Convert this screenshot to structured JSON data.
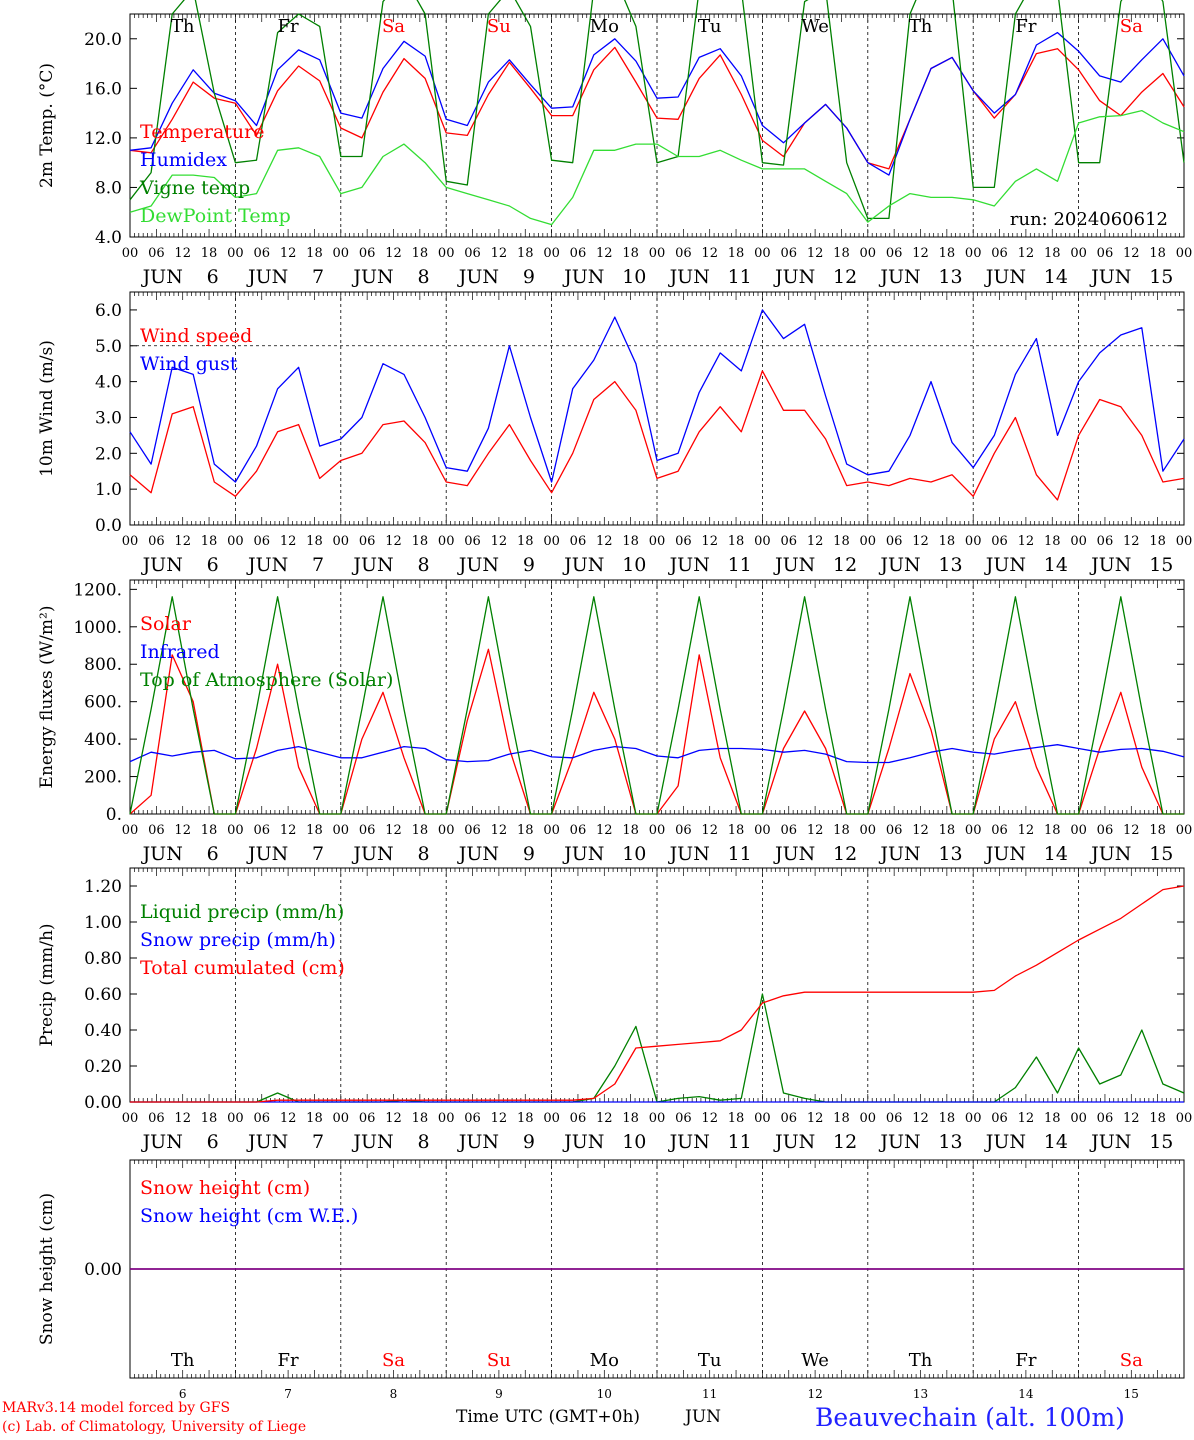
{
  "days": [
    "6",
    "7",
    "8",
    "9",
    "10",
    "11",
    "12",
    "13",
    "14",
    "15"
  ],
  "weekdays": [
    "Th",
    "Fr",
    "Sa",
    "Su",
    "Mo",
    "Tu",
    "We",
    "Th",
    "Fr",
    "Sa"
  ],
  "weekday_colors": [
    "#000000",
    "#000000",
    "#ff0000",
    "#ff0000",
    "#000000",
    "#000000",
    "#000000",
    "#000000",
    "#000000",
    "#ff0000"
  ],
  "hour_labels": [
    "00",
    "06",
    "12",
    "18"
  ],
  "month_label": "JUN",
  "colors": {
    "red": "#ff0000",
    "green": "#008000",
    "blue": "#0000ff",
    "lightgreen": "#33dd33",
    "purple": "#800080"
  },
  "footer": {
    "model": "MARv3.14 model forced by GFS",
    "copyright": "(c) Lab. of Climatology, University of Liege",
    "axis_title": "Time UTC (GMT+0h)",
    "month": "JUN",
    "station": "Beauvechain (alt. 100m)"
  },
  "chart_data": [
    {
      "type": "line",
      "ylabel": "2m Temp. (°C)",
      "ylim": [
        4,
        22
      ],
      "yticks": [
        "4.0",
        "8.0",
        "12.0",
        "16.0",
        "20.0"
      ],
      "annotation": "run: 2024060612",
      "legend": [
        "Temperature",
        "Vigne temp",
        "Humidex",
        "DewPoint Temp"
      ],
      "x_start": "2024-06-06 00:00 UTC",
      "x_step_hours": 6,
      "series": [
        {
          "name": "Temperature",
          "color": "red",
          "values": [
            11,
            10.8,
            13.5,
            16.5,
            15.2,
            14.8,
            12.2,
            15.8,
            17.8,
            16.6,
            12.8,
            12,
            15.7,
            18.4,
            16.8,
            12.4,
            12.2,
            15.5,
            18.1,
            16,
            13.8,
            13.8,
            17.5,
            19.3,
            16.5,
            13.6,
            13.5,
            16.8,
            18.7,
            15.5,
            11.8,
            10.5,
            13.2,
            14.7,
            12.8,
            10,
            9.5,
            13.5,
            17.6,
            18.5,
            15.8,
            13.6,
            15.5,
            18.8,
            19.2,
            17.5,
            15,
            13.8,
            15.7,
            17.2,
            14.5
          ]
        },
        {
          "name": "Humidex",
          "color": "blue",
          "values": [
            11,
            11.2,
            14.8,
            17.5,
            15.6,
            15,
            13,
            17.5,
            19.1,
            18.3,
            14,
            13.6,
            17.6,
            19.8,
            18.6,
            13.5,
            13,
            16.5,
            18.3,
            16.3,
            14.4,
            14.5,
            18.7,
            20,
            18.2,
            15.2,
            15.3,
            18.5,
            19.2,
            17,
            13,
            11.6,
            13.2,
            14.7,
            12.8,
            10,
            9,
            13.5,
            17.6,
            18.5,
            15.8,
            14,
            15.5,
            19.5,
            20.5,
            19,
            17,
            16.5,
            18.3,
            20,
            17
          ]
        },
        {
          "name": "Vigne temp",
          "color": "green",
          "values": [
            7,
            9.2,
            22,
            24,
            15.6,
            10,
            10.2,
            20.5,
            22,
            21,
            10.5,
            10.5,
            23,
            25,
            22,
            8.5,
            8.2,
            22,
            24,
            21,
            10.2,
            10,
            24,
            25,
            21,
            10,
            10.5,
            24,
            26,
            24,
            10,
            9.8,
            23,
            24,
            10,
            5.5,
            5.5,
            22,
            26,
            24,
            8,
            8,
            22,
            25,
            24,
            10,
            10,
            23,
            26,
            23,
            10
          ]
        },
        {
          "name": "DewPoint Temp",
          "color": "lightgreen",
          "values": [
            6,
            6.5,
            9,
            9,
            8.8,
            7.2,
            7.5,
            11,
            11.2,
            10.5,
            7.5,
            8,
            10.5,
            11.5,
            10,
            8,
            7.5,
            7,
            6.5,
            5.5,
            5,
            7.2,
            11,
            11,
            11.5,
            11.5,
            10.5,
            10.5,
            11,
            10.2,
            9.5,
            9.5,
            9.5,
            8.5,
            7.5,
            5.2,
            6.5,
            7.5,
            7.2,
            7.2,
            7,
            6.5,
            8.5,
            9.5,
            8.5,
            13.2,
            13.7,
            13.8,
            14.2,
            13.2,
            12.5
          ]
        }
      ]
    },
    {
      "type": "line",
      "ylabel": "10m Wind (m/s)",
      "ylim": [
        0,
        6.5
      ],
      "yticks": [
        "0.0",
        "1.0",
        "2.0",
        "3.0",
        "4.0",
        "5.0",
        "6.0"
      ],
      "reference_line": 5.0,
      "legend": [
        "Wind speed",
        "Wind gust"
      ],
      "x_start": "2024-06-06 00:00 UTC",
      "x_step_hours": 6,
      "series": [
        {
          "name": "Wind speed",
          "color": "red",
          "values": [
            1.4,
            0.9,
            3.1,
            3.3,
            1.2,
            0.8,
            1.5,
            2.6,
            2.8,
            1.3,
            1.8,
            2,
            2.8,
            2.9,
            2.3,
            1.2,
            1.1,
            2,
            2.8,
            1.8,
            0.9,
            2,
            3.5,
            4,
            3.2,
            1.3,
            1.5,
            2.6,
            3.3,
            2.6,
            4.3,
            3.2,
            3.2,
            2.4,
            1.1,
            1.2,
            1.1,
            1.3,
            1.2,
            1.4,
            0.8,
            2,
            3,
            1.4,
            0.7,
            2.5,
            3.5,
            3.3,
            2.5,
            1.2,
            1.3
          ]
        },
        {
          "name": "Wind gust",
          "color": "blue",
          "values": [
            2.6,
            1.7,
            4.4,
            4.2,
            1.7,
            1.2,
            2.2,
            3.8,
            4.4,
            2.2,
            2.4,
            3,
            4.5,
            4.2,
            3,
            1.6,
            1.5,
            2.7,
            5,
            3,
            1.2,
            3.8,
            4.6,
            5.8,
            4.5,
            1.8,
            2,
            3.7,
            4.8,
            4.3,
            6,
            5.2,
            5.6,
            3.6,
            1.7,
            1.4,
            1.5,
            2.5,
            4,
            2.3,
            1.6,
            2.5,
            4.2,
            5.2,
            2.5,
            4,
            4.8,
            5.3,
            5.5,
            1.5,
            2.4
          ]
        }
      ]
    },
    {
      "type": "line",
      "ylabel": "Energy fluxes (W/m²)",
      "ylim": [
        0,
        1250
      ],
      "yticks": [
        "0.",
        "200.",
        "400.",
        "600.",
        "800.",
        "1000.",
        "1200."
      ],
      "legend": [
        "Solar",
        "Infrared",
        "Top of Atmosphere (Solar)"
      ],
      "x_start": "2024-06-06 00:00 UTC",
      "x_step_hours": 6,
      "series": [
        {
          "name": "Solar",
          "color": "red",
          "values": [
            0,
            100,
            850,
            600,
            0,
            0,
            350,
            800,
            250,
            0,
            0,
            400,
            650,
            300,
            0,
            0,
            500,
            880,
            350,
            0,
            0,
            300,
            650,
            400,
            0,
            0,
            150,
            850,
            300,
            0,
            0,
            350,
            550,
            350,
            0,
            0,
            350,
            750,
            450,
            0,
            0,
            400,
            600,
            250,
            0,
            0,
            350,
            650,
            250,
            0,
            0
          ]
        },
        {
          "name": "Infrared",
          "color": "blue",
          "values": [
            280,
            330,
            310,
            330,
            340,
            295,
            300,
            340,
            360,
            330,
            300,
            300,
            330,
            360,
            350,
            290,
            280,
            285,
            320,
            340,
            305,
            300,
            340,
            360,
            350,
            310,
            300,
            340,
            350,
            350,
            345,
            330,
            340,
            320,
            280,
            275,
            275,
            300,
            330,
            350,
            330,
            320,
            340,
            355,
            370,
            350,
            330,
            345,
            350,
            335,
            305
          ]
        },
        {
          "name": "Top of Atmosphere (Solar)",
          "color": "green",
          "values": [
            0,
            560,
            1160,
            560,
            0,
            0,
            560,
            1160,
            560,
            0,
            0,
            560,
            1160,
            560,
            0,
            0,
            560,
            1160,
            560,
            0,
            0,
            560,
            1160,
            560,
            0,
            0,
            560,
            1160,
            560,
            0,
            0,
            560,
            1160,
            560,
            0,
            0,
            560,
            1160,
            560,
            0,
            0,
            560,
            1160,
            560,
            0,
            0,
            560,
            1160,
            560,
            0,
            0
          ]
        }
      ]
    },
    {
      "type": "line",
      "ylabel": "Precip (mm/h)",
      "ylim": [
        0,
        1.3
      ],
      "yticks": [
        "0.00",
        "0.20",
        "0.40",
        "0.60",
        "0.80",
        "1.00",
        "1.20"
      ],
      "legend": [
        "Liquid precip (mm/h)",
        "Snow precip (mm/h)",
        "Total cumulated (cm)"
      ],
      "x_start": "2024-06-06 00:00 UTC",
      "x_step_hours": 6,
      "series": [
        {
          "name": "Liquid precip (mm/h)",
          "color": "green",
          "values": [
            0,
            0,
            0,
            0,
            0,
            0,
            0,
            0.05,
            0,
            0,
            0,
            0,
            0,
            0.01,
            0,
            0,
            0,
            0,
            0,
            0,
            0,
            0,
            0.02,
            0.2,
            0.42,
            0,
            0.02,
            0.03,
            0.01,
            0.02,
            0.6,
            0.05,
            0.02,
            0,
            0,
            0,
            0,
            0,
            0,
            0,
            0,
            0,
            0.08,
            0.25,
            0.05,
            0.3,
            0.1,
            0.15,
            0.4,
            0.1,
            0.05
          ]
        },
        {
          "name": "Snow precip (mm/h)",
          "color": "blue",
          "values": [
            0,
            0,
            0,
            0,
            0,
            0,
            0,
            0,
            0,
            0,
            0,
            0,
            0,
            0,
            0,
            0,
            0,
            0,
            0,
            0,
            0,
            0,
            0,
            0,
            0,
            0,
            0,
            0,
            0,
            0,
            0,
            0,
            0,
            0,
            0,
            0,
            0,
            0,
            0,
            0,
            0,
            0,
            0,
            0,
            0,
            0,
            0,
            0,
            0,
            0,
            0
          ]
        },
        {
          "name": "Total cumulated (cm)",
          "color": "red",
          "values": [
            0,
            0,
            0,
            0,
            0,
            0,
            0,
            0.01,
            0.01,
            0.01,
            0.01,
            0.01,
            0.01,
            0.01,
            0.01,
            0.01,
            0.01,
            0.01,
            0.01,
            0.01,
            0.01,
            0.01,
            0.02,
            0.1,
            0.3,
            0.31,
            0.32,
            0.33,
            0.34,
            0.4,
            0.55,
            0.59,
            0.61,
            0.61,
            0.61,
            0.61,
            0.61,
            0.61,
            0.61,
            0.61,
            0.61,
            0.62,
            0.7,
            0.76,
            0.83,
            0.9,
            0.96,
            1.02,
            1.1,
            1.18,
            1.2
          ]
        }
      ]
    },
    {
      "type": "line",
      "ylabel": "Snow height (cm)",
      "ylim": [
        -1,
        1
      ],
      "yticks": [
        "0.00"
      ],
      "legend": [
        "Snow height (cm)",
        "Snow height (cm W.E.)"
      ],
      "x_start": "2024-06-06 00:00 UTC",
      "x_step_hours": 6,
      "series": [
        {
          "name": "Snow height (cm)",
          "color": "red",
          "values": [
            0,
            0
          ]
        },
        {
          "name": "Snow height (cm W.E.)",
          "color": "blue",
          "values": [
            0,
            0
          ]
        }
      ]
    }
  ]
}
